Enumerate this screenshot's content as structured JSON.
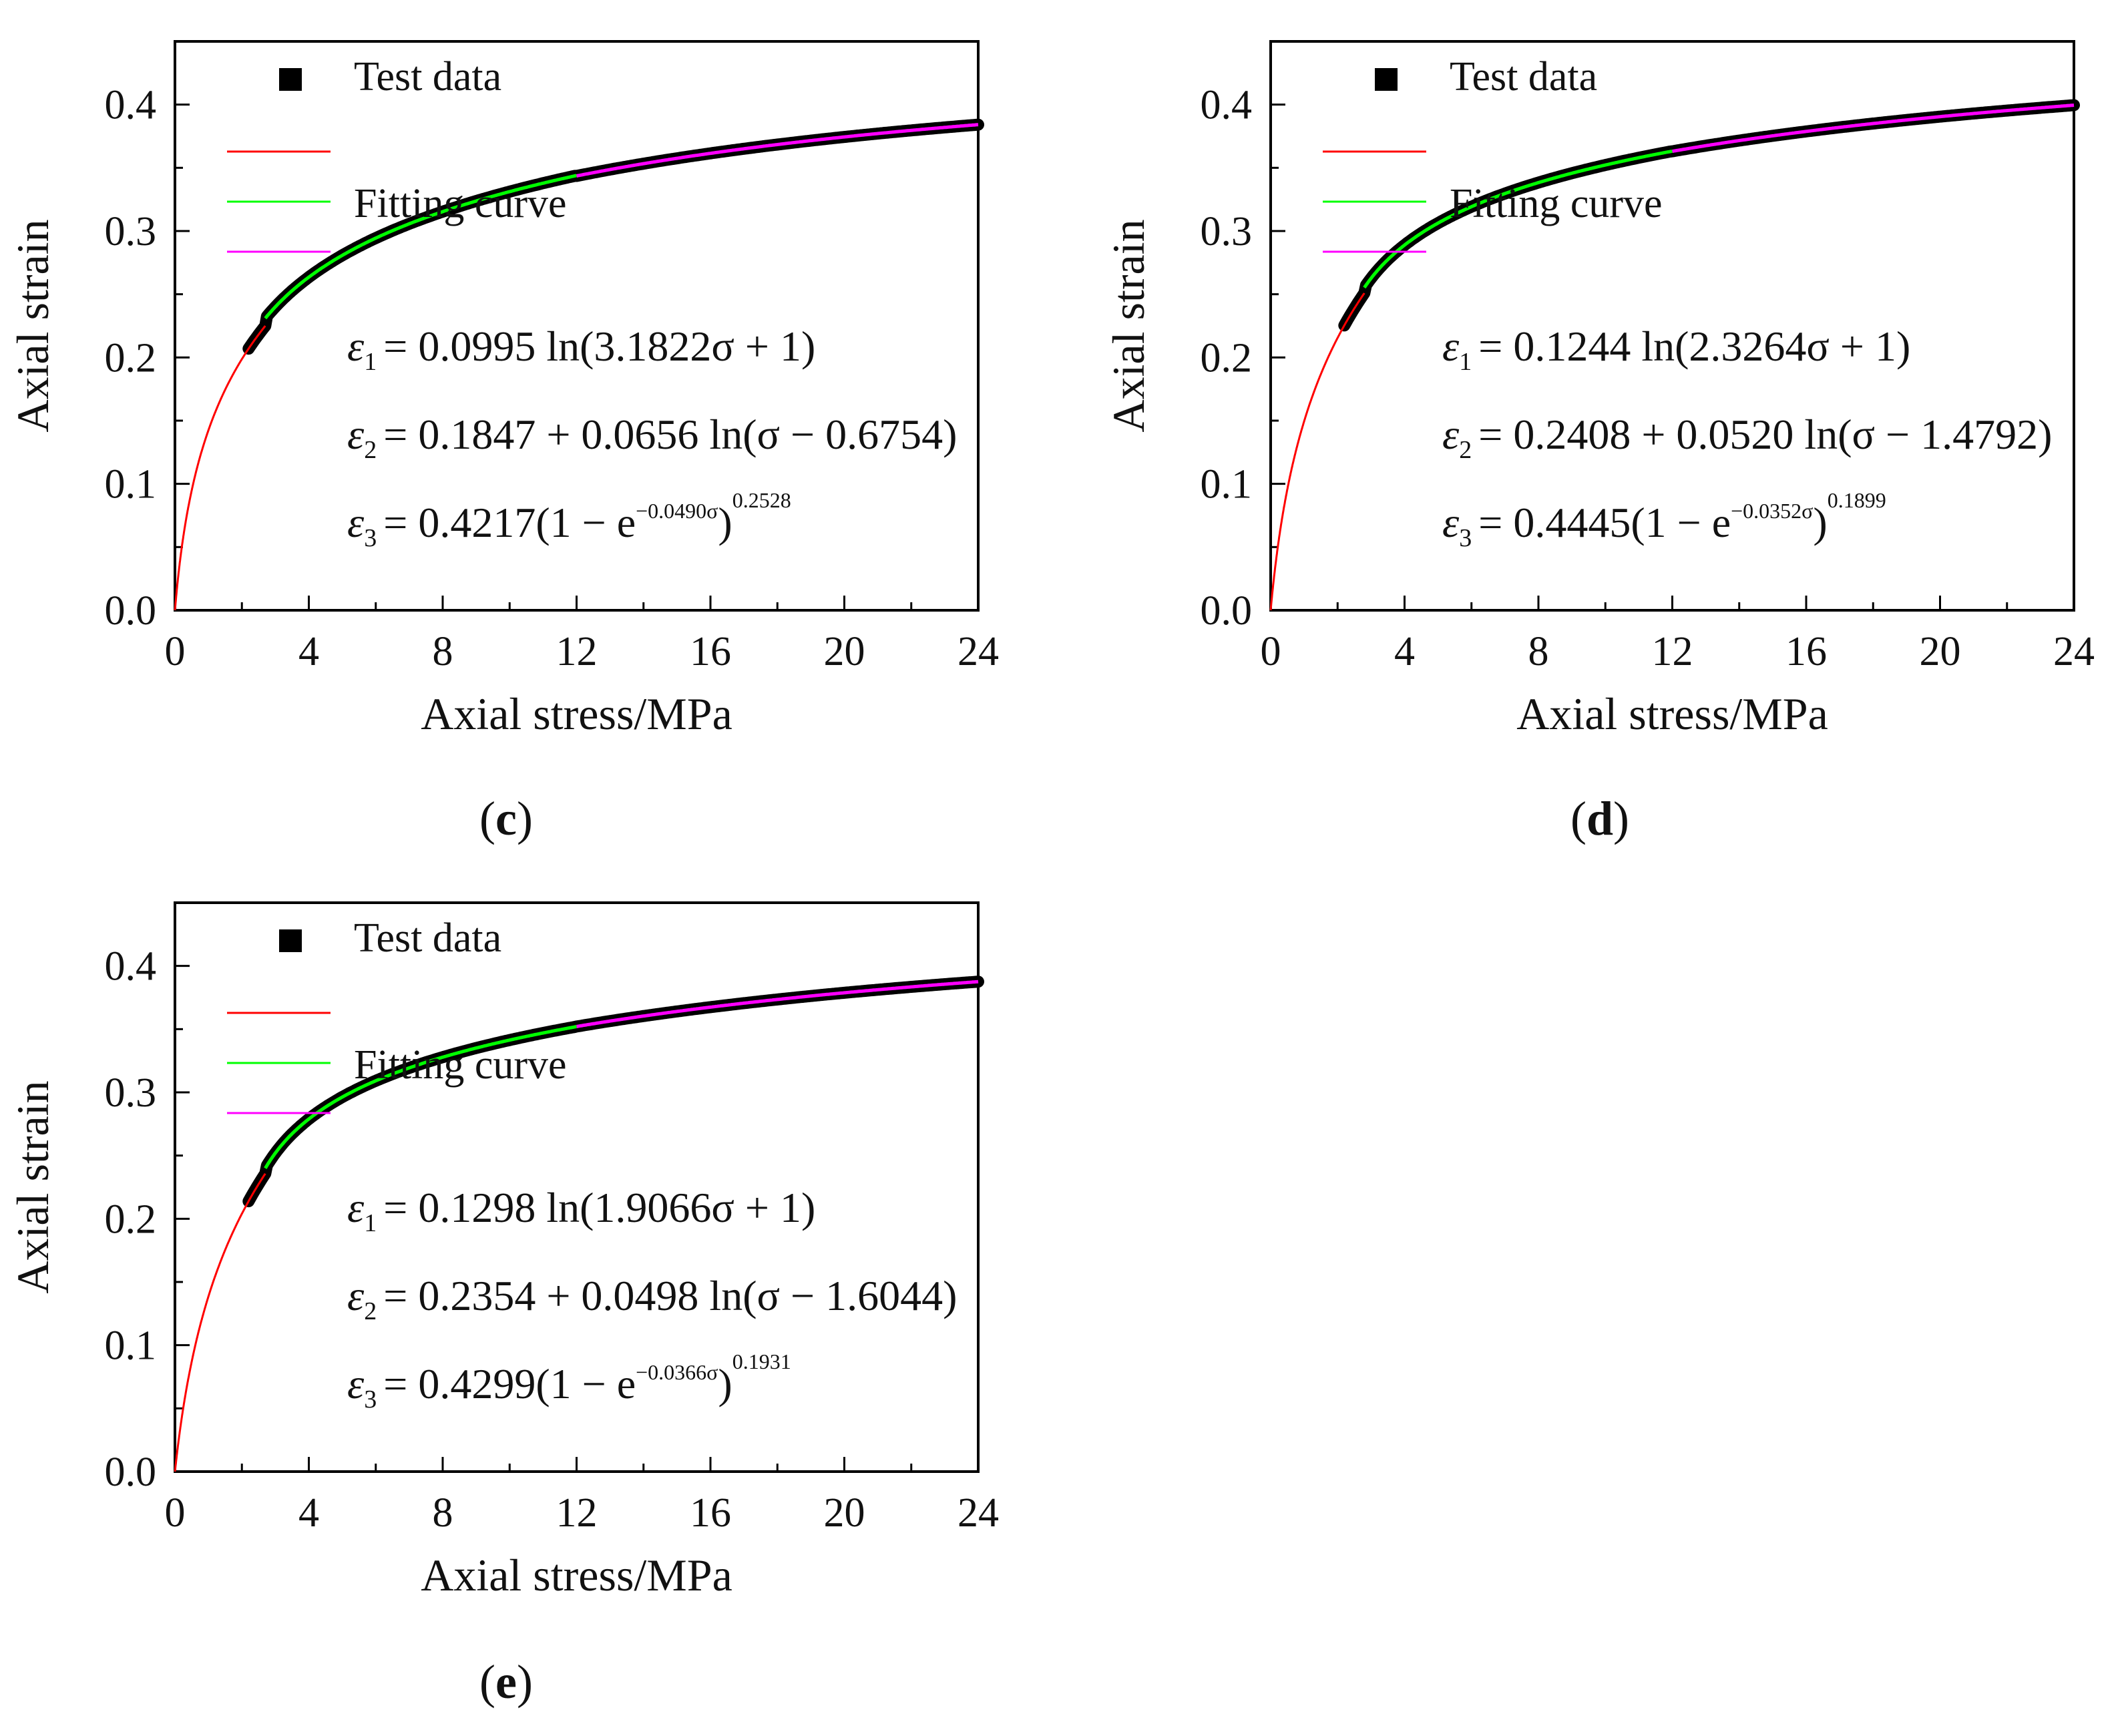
{
  "chart_data": [
    {
      "type": "line",
      "panel_label": "c",
      "xlabel": "Axial stress/MPa",
      "ylabel": "Axial strain",
      "xlim": [
        0,
        24
      ],
      "ylim": [
        0,
        0.45
      ],
      "xticks": [
        "0",
        "4",
        "8",
        "12",
        "16",
        "20",
        "24"
      ],
      "yticks": [
        "0.0",
        "0.1",
        "0.2",
        "0.3",
        "0.4"
      ],
      "legend": {
        "test_data": "Test data",
        "fitting_curve": "Fitting curve",
        "placement": "top-left"
      },
      "series": [
        {
          "name": "Test data",
          "color": "#000000",
          "kind": "markers",
          "x_range": [
            2.2,
            24
          ],
          "model": "piecewise"
        },
        {
          "name": "ε1",
          "color": "#ff0000",
          "kind": "line",
          "x_range": [
            0,
            2.7
          ],
          "model": "log",
          "a": 0.0995,
          "b": 3.1822
        },
        {
          "name": "ε2",
          "color": "#00ff00",
          "kind": "line",
          "x_range": [
            2.7,
            12
          ],
          "model": "logshift",
          "c": 0.1847,
          "a": 0.0656,
          "s": 0.6754
        },
        {
          "name": "ε3",
          "color": "#ff00ff",
          "kind": "line",
          "x_range": [
            12,
            24
          ],
          "model": "exp",
          "A": 0.4217,
          "k": 0.049,
          "p": 0.2528
        }
      ],
      "equations": [
        {
          "lhs": "ε",
          "sub": "1",
          "rhs": "= 0.0995 ln(3.1822σ + 1)"
        },
        {
          "lhs": "ε",
          "sub": "2",
          "rhs": "= 0.1847 + 0.0656 ln(σ − 0.6754)"
        },
        {
          "lhs": "ε",
          "sub": "3",
          "rhs": "= 0.4217(1 − e",
          "exp": "−0.0490σ",
          "tail": ")",
          "sup": "0.2528"
        }
      ]
    },
    {
      "type": "line",
      "panel_label": "d",
      "xlabel": "Axial stress/MPa",
      "ylabel": "Axial strain",
      "xlim": [
        0,
        24
      ],
      "ylim": [
        0,
        0.45
      ],
      "xticks": [
        "0",
        "4",
        "8",
        "12",
        "16",
        "20",
        "24"
      ],
      "yticks": [
        "0.0",
        "0.1",
        "0.2",
        "0.3",
        "0.4"
      ],
      "legend": {
        "test_data": "Test data",
        "fitting_curve": "Fitting curve",
        "placement": "top-left"
      },
      "series": [
        {
          "name": "Test data",
          "color": "#000000",
          "kind": "markers",
          "x_range": [
            2.2,
            24
          ],
          "model": "piecewise"
        },
        {
          "name": "ε1",
          "color": "#ff0000",
          "kind": "line",
          "x_range": [
            0,
            2.8
          ],
          "model": "log",
          "a": 0.1244,
          "b": 2.3264
        },
        {
          "name": "ε2",
          "color": "#00ff00",
          "kind": "line",
          "x_range": [
            2.8,
            12
          ],
          "model": "logshift",
          "c": 0.2408,
          "a": 0.052,
          "s": 1.4792
        },
        {
          "name": "ε3",
          "color": "#ff00ff",
          "kind": "line",
          "x_range": [
            12,
            24
          ],
          "model": "exp",
          "A": 0.4445,
          "k": 0.0352,
          "p": 0.1899
        }
      ],
      "equations": [
        {
          "lhs": "ε",
          "sub": "1",
          "rhs": "= 0.1244 ln(2.3264σ + 1)"
        },
        {
          "lhs": "ε",
          "sub": "2",
          "rhs": "= 0.2408 + 0.0520 ln(σ − 1.4792)"
        },
        {
          "lhs": "ε",
          "sub": "3",
          "rhs": "= 0.4445(1 − e",
          "exp": "−0.0352σ",
          "tail": ")",
          "sup": "0.1899"
        }
      ]
    },
    {
      "type": "line",
      "panel_label": "e",
      "xlabel": "Axial stress/MPa",
      "ylabel": "Axial strain",
      "xlim": [
        0,
        24
      ],
      "ylim": [
        0,
        0.45
      ],
      "xticks": [
        "0",
        "4",
        "8",
        "12",
        "16",
        "20",
        "24"
      ],
      "yticks": [
        "0.0",
        "0.1",
        "0.2",
        "0.3",
        "0.4"
      ],
      "legend": {
        "test_data": "Test data",
        "fitting_curve": "Fitting curve",
        "placement": "top-left"
      },
      "series": [
        {
          "name": "Test data",
          "color": "#000000",
          "kind": "markers",
          "x_range": [
            2.2,
            24
          ],
          "model": "piecewise"
        },
        {
          "name": "ε1",
          "color": "#ff0000",
          "kind": "line",
          "x_range": [
            0,
            2.7
          ],
          "model": "log",
          "a": 0.1298,
          "b": 1.9066
        },
        {
          "name": "ε2",
          "color": "#00ff00",
          "kind": "line",
          "x_range": [
            2.7,
            12
          ],
          "model": "logshift",
          "c": 0.2354,
          "a": 0.0498,
          "s": 1.6044
        },
        {
          "name": "ε3",
          "color": "#ff00ff",
          "kind": "line",
          "x_range": [
            12,
            24
          ],
          "model": "exp",
          "A": 0.4299,
          "k": 0.0366,
          "p": 0.1931
        }
      ],
      "equations": [
        {
          "lhs": "ε",
          "sub": "1",
          "rhs": "= 0.1298 ln(1.9066σ + 1)"
        },
        {
          "lhs": "ε",
          "sub": "2",
          "rhs": "= 0.2354 + 0.0498 ln(σ − 1.6044)"
        },
        {
          "lhs": "ε",
          "sub": "3",
          "rhs": "= 0.4299(1 − e",
          "exp": "−0.0366σ",
          "tail": ")",
          "sup": "0.1931"
        }
      ]
    }
  ],
  "captions": [
    "(c)",
    "(d)",
    "(e)"
  ]
}
